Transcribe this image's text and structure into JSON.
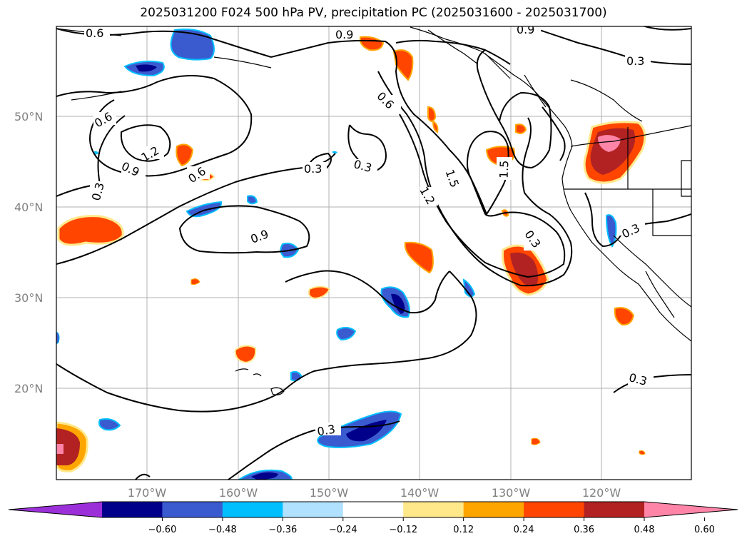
{
  "title": "2025031200 F024 500 hPa PV, precipitation PC (2025031600 - 2025031700)",
  "lat_labels": [
    "50°N",
    "40°N",
    "30°N",
    "20°N"
  ],
  "lon_labels": [
    "170°W",
    "160°W",
    "150°W",
    "140°W",
    "130°W",
    "120°W"
  ],
  "contour_labels": [
    "0.6",
    "0.9",
    "0.9",
    "0.3",
    "0.6",
    "1.2",
    "0.9",
    "0.6",
    "0.3",
    "0.3",
    "0.3",
    "0.9",
    "0.6",
    "1.2",
    "1.5",
    "1.5",
    "0.3",
    "0.3",
    "0.3",
    "0.3"
  ],
  "colorbar": {
    "colors": [
      "#9b30d9",
      "#00008b",
      "#3a5bd0",
      "#00bfff",
      "#b0e2ff",
      "#ffffff",
      "#ffe88a",
      "#ffa500",
      "#ff4500",
      "#b22222",
      "#ff85a8"
    ],
    "tick_labels": [
      "−0.60",
      "−0.48",
      "−0.36",
      "−0.24",
      "−0.12",
      "0.12",
      "0.24",
      "0.36",
      "0.48",
      "0.60"
    ]
  }
}
